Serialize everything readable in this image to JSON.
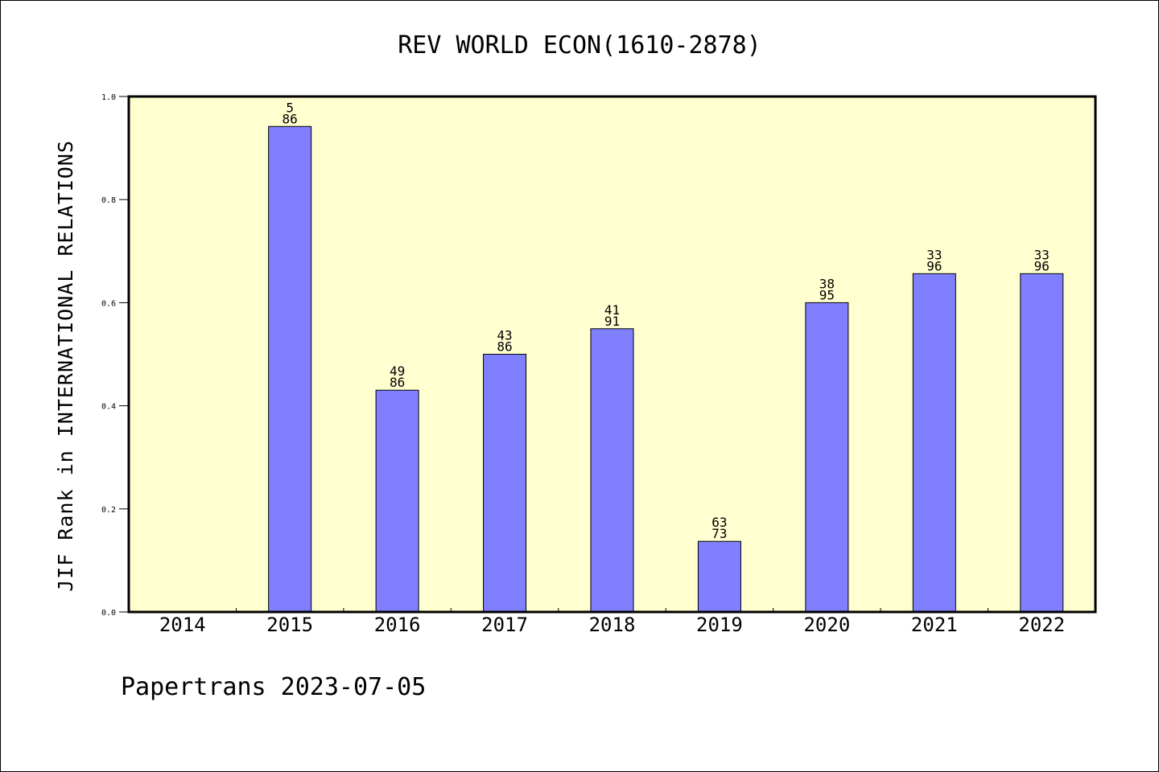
{
  "chart_data": {
    "type": "bar",
    "title": "REV WORLD ECON(1610-2878)",
    "xlabel": "",
    "ylabel": "JIF Rank in INTERNATIONAL RELATIONS",
    "ylim": [
      0,
      1
    ],
    "yticks": [
      "0.0",
      "0.2",
      "0.4",
      "0.6",
      "0.8",
      "1.0"
    ],
    "categories": [
      "2014",
      "2015",
      "2016",
      "2017",
      "2018",
      "2019",
      "2020",
      "2021",
      "2022"
    ],
    "values": [
      null,
      0.942,
      0.43,
      0.5,
      0.549,
      0.137,
      0.6,
      0.656,
      0.656
    ],
    "label_top": [
      "",
      "5",
      "49",
      "43",
      "41",
      "63",
      "38",
      "33",
      "33"
    ],
    "label_bottom": [
      "",
      "86",
      "86",
      "86",
      "91",
      "73",
      "95",
      "96",
      "96"
    ],
    "grid": false,
    "legend": "none",
    "colors": {
      "plot_bg": "#FFFFD0",
      "bar": "#8080FF",
      "bar_edge": "#000000"
    }
  },
  "footer": {
    "text": "Papertrans 2023-07-05"
  }
}
